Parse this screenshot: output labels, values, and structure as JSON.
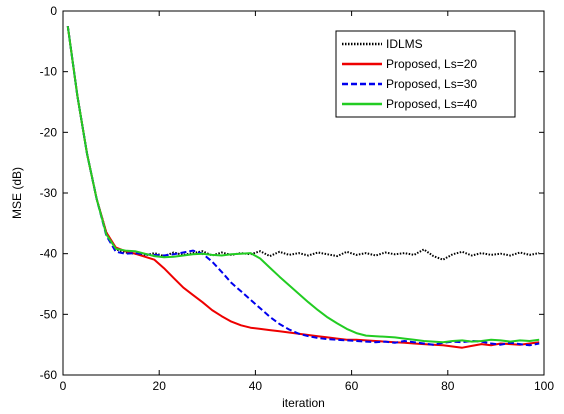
{
  "chart_data": {
    "type": "line",
    "title": "",
    "xlabel": "iteration",
    "ylabel": "MSE (dB)",
    "xlim": [
      0,
      100
    ],
    "ylim": [
      -60,
      0
    ],
    "xticks": [
      "0",
      "20",
      "40",
      "60",
      "80",
      "100"
    ],
    "yticks": [
      "0",
      "-10",
      "-20",
      "-30",
      "-40",
      "-50",
      "-60"
    ],
    "grid": false,
    "legend_position": "top-right",
    "series": [
      {
        "name": "IDLMS",
        "color": "#000000",
        "style": "dotted",
        "x": [
          1,
          3,
          5,
          7,
          9,
          11,
          13,
          15,
          17,
          19,
          21,
          23,
          25,
          27,
          29,
          31,
          33,
          35,
          37,
          39,
          41,
          43,
          45,
          47,
          49,
          51,
          53,
          55,
          57,
          59,
          61,
          63,
          65,
          67,
          69,
          71,
          73,
          75,
          77,
          79,
          81,
          83,
          85,
          87,
          89,
          91,
          93,
          95,
          97,
          99
        ],
        "y": [
          -2.5,
          -14,
          -23.5,
          -31,
          -36.5,
          -39.3,
          -39.8,
          -40,
          -40.3,
          -39.9,
          -40.4,
          -39.8,
          -40.2,
          -39.9,
          -39.6,
          -40.3,
          -39.8,
          -40.2,
          -39.9,
          -40.1,
          -39.6,
          -40.4,
          -39.7,
          -40.2,
          -39.9,
          -40.3,
          -39.8,
          -40.1,
          -40.4,
          -39.7,
          -40.2,
          -39.9,
          -40.3,
          -39.8,
          -40.1,
          -39.9,
          -40.2,
          -39.3,
          -40.4,
          -41,
          -40.1,
          -39.7,
          -40.3,
          -39.9,
          -40.2,
          -40,
          -40.3,
          -39.8,
          -40.2,
          -39.9
        ]
      },
      {
        "name": "Proposed, Ls=20",
        "color": "#ee0000",
        "style": "solid",
        "x": [
          1,
          3,
          5,
          7,
          9,
          11,
          13,
          15,
          17,
          19,
          21,
          23,
          25,
          27,
          29,
          31,
          33,
          35,
          37,
          39,
          41,
          43,
          45,
          47,
          49,
          51,
          53,
          55,
          57,
          59,
          61,
          63,
          65,
          67,
          69,
          71,
          73,
          75,
          77,
          79,
          81,
          83,
          85,
          87,
          89,
          91,
          93,
          95,
          97,
          99
        ],
        "y": [
          -2.5,
          -14,
          -23.5,
          -31,
          -36.5,
          -39,
          -39.6,
          -40,
          -40.5,
          -41,
          -42.4,
          -44,
          -45.6,
          -46.8,
          -48,
          -49.3,
          -50.3,
          -51.2,
          -51.8,
          -52.2,
          -52.4,
          -52.6,
          -52.8,
          -53,
          -53.2,
          -53.4,
          -53.6,
          -53.8,
          -54,
          -54.2,
          -54.2,
          -54.3,
          -54.4,
          -54.5,
          -54.6,
          -54.7,
          -54.8,
          -54.9,
          -55,
          -55.1,
          -55.3,
          -55.5,
          -55.2,
          -54.9,
          -55.1,
          -54.8,
          -54.9,
          -55,
          -54.8,
          -54.6
        ]
      },
      {
        "name": "Proposed, Ls=30",
        "color": "#0000ee",
        "style": "dashed",
        "x": [
          1,
          3,
          5,
          7,
          9,
          11,
          13,
          15,
          17,
          19,
          21,
          23,
          25,
          27,
          29,
          31,
          33,
          35,
          37,
          39,
          41,
          43,
          45,
          47,
          49,
          51,
          53,
          55,
          57,
          59,
          61,
          63,
          65,
          67,
          69,
          71,
          73,
          75,
          77,
          79,
          81,
          83,
          85,
          87,
          89,
          91,
          93,
          95,
          97,
          99
        ],
        "y": [
          -2.5,
          -14,
          -23.5,
          -31,
          -37,
          -39.7,
          -40,
          -39.9,
          -40.1,
          -40.2,
          -40.3,
          -40.1,
          -39.8,
          -39.5,
          -40,
          -41.3,
          -43,
          -44.8,
          -46.2,
          -47.6,
          -49,
          -50.4,
          -51.6,
          -52.5,
          -53.2,
          -53.6,
          -53.9,
          -54.1,
          -54.2,
          -54.3,
          -54.4,
          -54.5,
          -54.6,
          -54.5,
          -54.7,
          -54.4,
          -54.6,
          -54.8,
          -55,
          -54.7,
          -54.5,
          -54.6,
          -54.4,
          -54.5,
          -54.8,
          -55,
          -54.7,
          -54.9,
          -55.1,
          -54.8
        ]
      },
      {
        "name": "Proposed, Ls=40",
        "color": "#22cc22",
        "style": "solid",
        "x": [
          1,
          3,
          5,
          7,
          9,
          11,
          13,
          15,
          17,
          19,
          21,
          23,
          25,
          27,
          29,
          31,
          33,
          35,
          37,
          39,
          41,
          43,
          45,
          47,
          49,
          51,
          53,
          55,
          57,
          59,
          61,
          63,
          65,
          67,
          69,
          71,
          73,
          75,
          77,
          79,
          81,
          83,
          85,
          87,
          89,
          91,
          93,
          95,
          97,
          99
        ],
        "y": [
          -2.5,
          -14,
          -23.5,
          -31,
          -36.8,
          -39.2,
          -39.5,
          -39.6,
          -40,
          -40.4,
          -40.6,
          -40.5,
          -40.3,
          -40.1,
          -40,
          -40.2,
          -40.3,
          -40.1,
          -40,
          -39.9,
          -40.8,
          -42.3,
          -43.8,
          -45.2,
          -46.6,
          -48,
          -49.3,
          -50.5,
          -51.5,
          -52.4,
          -53.1,
          -53.5,
          -53.6,
          -53.7,
          -53.8,
          -54,
          -54.2,
          -54.4,
          -54.5,
          -54.6,
          -54.4,
          -54.3,
          -54.5,
          -54.4,
          -54.2,
          -54.3,
          -54.5,
          -54.3,
          -54.4,
          -54.2
        ]
      }
    ]
  }
}
